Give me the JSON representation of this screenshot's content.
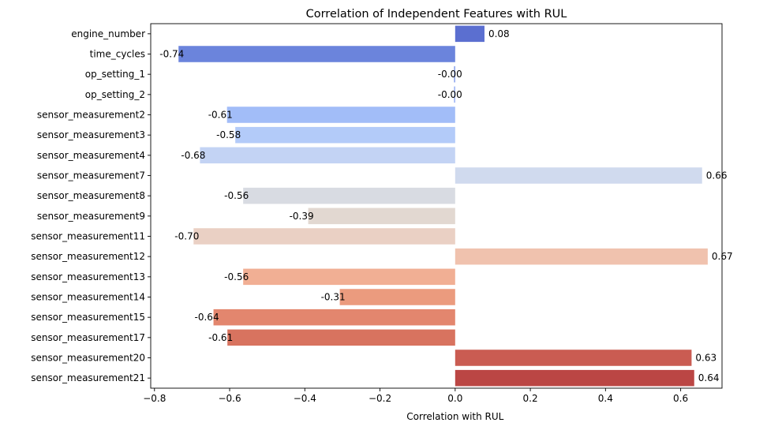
{
  "chart_data": {
    "type": "bar",
    "orientation": "horizontal",
    "title": "Correlation of Independent Features with RUL",
    "xlabel": "Correlation with RUL",
    "ylabel": "",
    "xlim": [
      -0.81,
      0.71
    ],
    "xticks": [
      -0.8,
      -0.6,
      -0.4,
      -0.2,
      0.0,
      0.2,
      0.4,
      0.6
    ],
    "xtick_labels": [
      "−0.8",
      "−0.6",
      "−0.4",
      "−0.2",
      "0.0",
      "0.2",
      "0.4",
      "0.6"
    ],
    "grid": false,
    "legend": "none",
    "categories": [
      "engine_number",
      "time_cycles",
      "op_setting_1",
      "op_setting_2",
      "sensor_measurement2",
      "sensor_measurement3",
      "sensor_measurement4",
      "sensor_measurement7",
      "sensor_measurement8",
      "sensor_measurement9",
      "sensor_measurement11",
      "sensor_measurement12",
      "sensor_measurement13",
      "sensor_measurement14",
      "sensor_measurement15",
      "sensor_measurement17",
      "sensor_measurement20",
      "sensor_measurement21"
    ],
    "values": [
      0.078,
      -0.736,
      -0.003,
      -0.003,
      -0.607,
      -0.585,
      -0.679,
      0.657,
      -0.564,
      -0.391,
      -0.696,
      0.672,
      -0.564,
      -0.307,
      -0.643,
      -0.606,
      0.629,
      0.636
    ],
    "value_labels": [
      "0.08",
      "-0.74",
      "-0.00",
      "-0.00",
      "-0.61",
      "-0.58",
      "-0.68",
      "0.66",
      "-0.56",
      "-0.39",
      "-0.70",
      "0.67",
      "-0.56",
      "-0.31",
      "-0.64",
      "-0.61",
      "0.63",
      "0.64"
    ],
    "colors": [
      "#5b6fd0",
      "#6b84dc",
      "#7f9aea",
      "#91abf4",
      "#a2bdf8",
      "#b3cbf9",
      "#c3d3f4",
      "#d0daee",
      "#d8dbe2",
      "#e2d8d1",
      "#ead0c4",
      "#f0c2ae",
      "#f1af94",
      "#eb9b7e",
      "#e3866e",
      "#d8735f",
      "#ca5c52",
      "#bb4644"
    ]
  }
}
